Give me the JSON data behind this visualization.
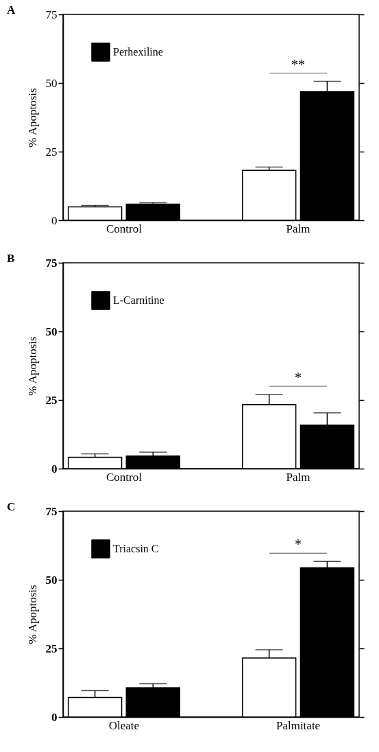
{
  "chart_data": [
    {
      "type": "bar",
      "title": "A",
      "ylabel": "% Apoptosis",
      "categories": [
        "Control",
        "Palm"
      ],
      "ylim": [
        0,
        75
      ],
      "yticks": [
        0,
        25,
        50,
        75
      ],
      "legend": "top left",
      "series": [
        {
          "color": "#ffffff",
          "values": [
            4.9,
            18.2
          ],
          "errors": [
            0.5,
            1.2
          ]
        },
        {
          "name": "Perhexiline",
          "color": "#000000",
          "values": [
            5.9,
            46.8
          ],
          "errors": [
            0.5,
            3.8
          ]
        }
      ],
      "annotations": [
        "**"
      ]
    },
    {
      "type": "bar",
      "title": "B",
      "ylabel": "% Apoptosis",
      "categories": [
        "Control",
        "Palm"
      ],
      "ylim": [
        0,
        75
      ],
      "yticks": [
        0,
        25,
        50,
        75
      ],
      "legend": "top left",
      "series": [
        {
          "color": "#ffffff",
          "values": [
            4.1,
            23.3
          ],
          "errors": [
            1.3,
            3.7
          ]
        },
        {
          "name": "L-Carnitine",
          "color": "#000000",
          "values": [
            4.6,
            15.9
          ],
          "errors": [
            1.4,
            4.4
          ]
        }
      ],
      "annotations": [
        "*"
      ]
    },
    {
      "type": "bar",
      "title": "C",
      "ylabel": "% Apoptosis",
      "categories": [
        "Oleate",
        "Palmitate"
      ],
      "ylim": [
        0,
        75
      ],
      "yticks": [
        0,
        25,
        50,
        75
      ],
      "legend": "top left",
      "series": [
        {
          "color": "#ffffff",
          "values": [
            7.1,
            21.5
          ],
          "errors": [
            2.5,
            3.0
          ]
        },
        {
          "name": "Triacsin C",
          "color": "#000000",
          "values": [
            10.7,
            54.4
          ],
          "errors": [
            1.4,
            2.3
          ]
        }
      ],
      "annotations": [
        "*"
      ]
    }
  ]
}
